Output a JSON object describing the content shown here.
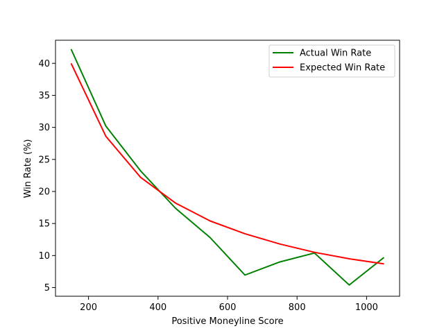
{
  "chart_data": {
    "type": "line",
    "title": "",
    "xlabel": "Positive Moneyline Score",
    "ylabel": "Win Rate (%)",
    "xlim": [
      105,
      1095
    ],
    "ylim": [
      3.65,
      43.6
    ],
    "xticks": [
      200,
      400,
      600,
      800,
      1000
    ],
    "yticks": [
      5,
      10,
      15,
      20,
      25,
      30,
      35,
      40
    ],
    "grid": false,
    "legend_position": "top-right",
    "x": [
      150,
      250,
      350,
      450,
      550,
      650,
      750,
      850,
      950,
      1050
    ],
    "series": [
      {
        "name": "Actual Win Rate",
        "color": "#008000",
        "values": [
          42.2,
          30.2,
          23.2,
          17.4,
          12.8,
          6.95,
          9.0,
          10.4,
          5.4,
          9.7
        ]
      },
      {
        "name": "Expected Win Rate",
        "color": "#ff0000",
        "values": [
          40.0,
          28.6,
          22.2,
          18.2,
          15.4,
          13.4,
          11.8,
          10.5,
          9.5,
          8.7
        ]
      }
    ]
  }
}
